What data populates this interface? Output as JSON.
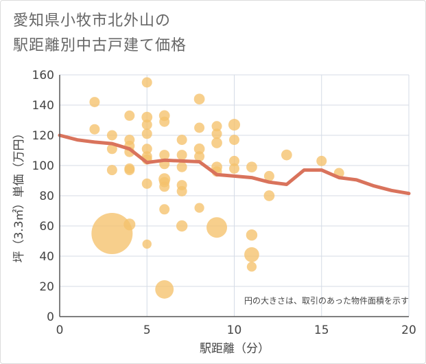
{
  "title": {
    "line1": "愛知県小牧市北外山の",
    "line2": "駅距離別中古戸建て価格"
  },
  "chart_data": {
    "type": "scatter",
    "title": "愛知県小牧市北外山の駅距離別中古戸建て価格",
    "xlabel": "駅距離（分）",
    "ylabel": "坪（3.3㎡）単価（万円）",
    "xlim": [
      0,
      20
    ],
    "ylim": [
      0,
      160
    ],
    "xticks": [
      0,
      5,
      10,
      15,
      20
    ],
    "yticks": [
      0,
      20,
      40,
      60,
      80,
      100,
      120,
      140,
      160
    ],
    "grid": true,
    "note": "円の大きさは、取引のあった物件面積を示す",
    "colors": {
      "bubble": "#f5c26b",
      "line": "#d9735c",
      "grid": "#d4dbe6",
      "axis": "#555555"
    },
    "bubbles": [
      {
        "x": 2,
        "y": 142,
        "size": 1
      },
      {
        "x": 2,
        "y": 124,
        "size": 1
      },
      {
        "x": 3,
        "y": 120,
        "size": 1
      },
      {
        "x": 3,
        "y": 111,
        "size": 1
      },
      {
        "x": 3,
        "y": 97,
        "size": 1
      },
      {
        "x": 3,
        "y": 55,
        "size": 16
      },
      {
        "x": 4,
        "y": 133,
        "size": 1
      },
      {
        "x": 4,
        "y": 117,
        "size": 1
      },
      {
        "x": 4,
        "y": 113,
        "size": 1
      },
      {
        "x": 4,
        "y": 109,
        "size": 1
      },
      {
        "x": 4,
        "y": 98,
        "size": 1
      },
      {
        "x": 4,
        "y": 97,
        "size": 1
      },
      {
        "x": 4,
        "y": 61,
        "size": 1.3
      },
      {
        "x": 5,
        "y": 155,
        "size": 1
      },
      {
        "x": 5,
        "y": 132,
        "size": 1.1
      },
      {
        "x": 5,
        "y": 127,
        "size": 1
      },
      {
        "x": 5,
        "y": 121,
        "size": 1
      },
      {
        "x": 5,
        "y": 111,
        "size": 1
      },
      {
        "x": 5,
        "y": 106,
        "size": 1
      },
      {
        "x": 5,
        "y": 104,
        "size": 1
      },
      {
        "x": 5,
        "y": 88,
        "size": 1
      },
      {
        "x": 5,
        "y": 48,
        "size": 0.8
      },
      {
        "x": 6,
        "y": 133,
        "size": 1.1
      },
      {
        "x": 6,
        "y": 129,
        "size": 1
      },
      {
        "x": 6,
        "y": 107,
        "size": 1
      },
      {
        "x": 6,
        "y": 101,
        "size": 1
      },
      {
        "x": 6,
        "y": 91,
        "size": 1.3
      },
      {
        "x": 6,
        "y": 89,
        "size": 1
      },
      {
        "x": 6,
        "y": 86,
        "size": 1
      },
      {
        "x": 6,
        "y": 71,
        "size": 1
      },
      {
        "x": 6,
        "y": 18,
        "size": 3.2
      },
      {
        "x": 7,
        "y": 117,
        "size": 1
      },
      {
        "x": 7,
        "y": 107,
        "size": 1
      },
      {
        "x": 7,
        "y": 99,
        "size": 1
      },
      {
        "x": 7,
        "y": 87,
        "size": 1
      },
      {
        "x": 7,
        "y": 83,
        "size": 1
      },
      {
        "x": 7,
        "y": 60,
        "size": 1.2
      },
      {
        "x": 8,
        "y": 144,
        "size": 1.1
      },
      {
        "x": 8,
        "y": 125,
        "size": 1
      },
      {
        "x": 8,
        "y": 111,
        "size": 1.1
      },
      {
        "x": 8,
        "y": 106,
        "size": 1
      },
      {
        "x": 8,
        "y": 72,
        "size": 0.9
      },
      {
        "x": 9,
        "y": 126,
        "size": 1
      },
      {
        "x": 9,
        "y": 121,
        "size": 1
      },
      {
        "x": 9,
        "y": 115,
        "size": 1.1
      },
      {
        "x": 9,
        "y": 99,
        "size": 1.1
      },
      {
        "x": 9,
        "y": 96,
        "size": 1
      },
      {
        "x": 9,
        "y": 59,
        "size": 4
      },
      {
        "x": 10,
        "y": 127,
        "size": 1.3
      },
      {
        "x": 10,
        "y": 117,
        "size": 1
      },
      {
        "x": 10,
        "y": 103,
        "size": 1
      },
      {
        "x": 10,
        "y": 98,
        "size": 1
      },
      {
        "x": 11,
        "y": 99,
        "size": 1.1
      },
      {
        "x": 11,
        "y": 54,
        "size": 1.2
      },
      {
        "x": 11,
        "y": 41,
        "size": 2.1
      },
      {
        "x": 11,
        "y": 33,
        "size": 0.9
      },
      {
        "x": 12,
        "y": 93,
        "size": 1
      },
      {
        "x": 12,
        "y": 80,
        "size": 1.1
      },
      {
        "x": 13,
        "y": 107,
        "size": 1.1
      },
      {
        "x": 15,
        "y": 103,
        "size": 1
      },
      {
        "x": 16,
        "y": 95,
        "size": 1
      }
    ],
    "trend_line": {
      "x": [
        0,
        1,
        2,
        3,
        4,
        5,
        6,
        7,
        8,
        9,
        10,
        11,
        12,
        13,
        14,
        15,
        16,
        17,
        18,
        19,
        20
      ],
      "y": [
        120,
        117,
        115.5,
        114.5,
        111,
        102,
        103.5,
        103,
        102.5,
        94,
        93,
        92,
        89,
        87.5,
        97,
        97,
        92,
        90.5,
        86.5,
        83.5,
        81.5
      ]
    }
  }
}
